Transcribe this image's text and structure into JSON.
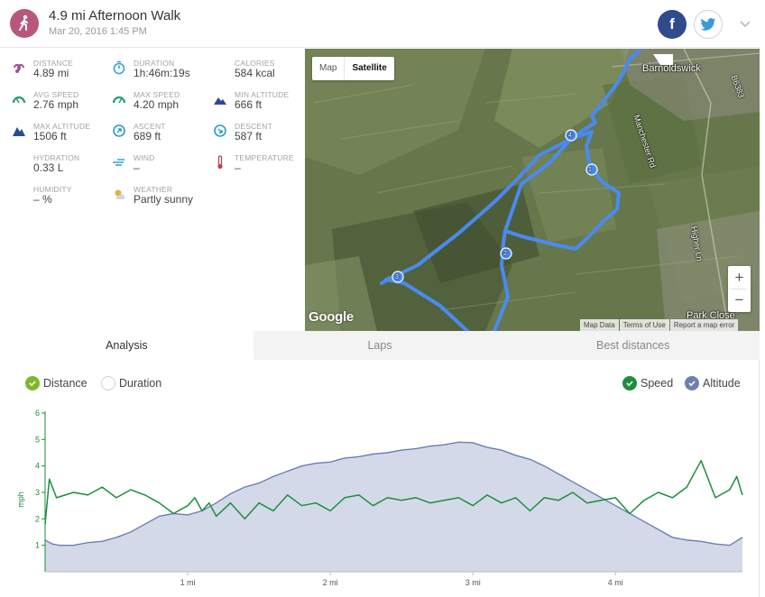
{
  "header": {
    "title": "4.9 mi Afternoon Walk",
    "date": "Mar 20, 2016 1:45 PM",
    "activity_icon": "walking-person-icon",
    "facebook_label": "f"
  },
  "stats": [
    {
      "key": "distance",
      "label": "DISTANCE",
      "value": "4.89 mi",
      "icon": "distance-icon",
      "color": "#9b4f96"
    },
    {
      "key": "duration",
      "label": "DURATION",
      "value": "1h:46m:19s",
      "icon": "stopwatch-icon",
      "color": "#3b9fd8"
    },
    {
      "key": "calories",
      "label": "CALORIES",
      "value": "584 kcal",
      "icon": "flame-icon",
      "color": "#e8632b"
    },
    {
      "key": "avg_speed",
      "label": "AVG SPEED",
      "value": "2.76 mph",
      "icon": "speedometer-icon",
      "color": "#2a9d6e"
    },
    {
      "key": "max_speed",
      "label": "MAX SPEED",
      "value": "4.20 mph",
      "icon": "speedometer-max-icon",
      "color": "#2a9d6e"
    },
    {
      "key": "min_altitude",
      "label": "MIN ALTITUDE",
      "value": "666 ft",
      "icon": "mountain-low-icon",
      "color": "#2d4a8f"
    },
    {
      "key": "max_altitude",
      "label": "MAX ALTITUDE",
      "value": "1506 ft",
      "icon": "mountain-high-icon",
      "color": "#2d4a8f"
    },
    {
      "key": "ascent",
      "label": "ASCENT",
      "value": "689 ft",
      "icon": "compass-up-icon",
      "color": "#2a9bc4"
    },
    {
      "key": "descent",
      "label": "DESCENT",
      "value": "587 ft",
      "icon": "compass-down-icon",
      "color": "#2a9bc4"
    },
    {
      "key": "hydration",
      "label": "HYDRATION",
      "value": "0.33 L",
      "icon": "water-drops-icon",
      "color": "#5fa5e3"
    },
    {
      "key": "wind",
      "label": "WIND",
      "value": "–",
      "icon": "wind-icon",
      "color": "#2aa9c4"
    },
    {
      "key": "temperature",
      "label": "TEMPERATURE",
      "value": "–",
      "icon": "thermometer-icon",
      "color": "#b04a5a"
    },
    {
      "key": "humidity",
      "label": "HUMIDITY",
      "value": "– %",
      "icon": "humidity-drops-icon",
      "color": "#5fa5e3"
    },
    {
      "key": "weather",
      "label": "WEATHER",
      "value": "Partly sunny",
      "icon": "partly-sunny-icon",
      "color": "#d9b44a"
    }
  ],
  "map": {
    "map_button": "Map",
    "satellite_button": "Satellite",
    "zoom_in": "+",
    "zoom_out": "−",
    "logo": "Google",
    "footer": [
      "Map Data",
      "Terms of Use",
      "Report a map error"
    ],
    "town_label": "Barnoldswick",
    "park_label": "Park Close",
    "road_labels": [
      "Manchester Rd",
      "Higher Ln",
      "B6383"
    ],
    "waypoints": [
      "1",
      "2",
      "3",
      "4"
    ],
    "route_color": "#4a8af0"
  },
  "tabs": [
    {
      "label": "Analysis",
      "active": true
    },
    {
      "label": "Laps",
      "active": false
    },
    {
      "label": "Best distances",
      "active": false
    }
  ],
  "chart_options": {
    "distance": "Distance",
    "duration": "Duration",
    "speed": "Speed",
    "altitude": "Altitude"
  },
  "chart_data": {
    "type": "line",
    "ylabel": "mph",
    "ylim": [
      0,
      6
    ],
    "yticks": [
      "1",
      "2",
      "3",
      "4",
      "5",
      "6"
    ],
    "xlim": [
      0,
      4.89
    ],
    "xticks": [
      {
        "v": 1,
        "label": "1 mi"
      },
      {
        "v": 2,
        "label": "2 mi"
      },
      {
        "v": 3,
        "label": "3 mi"
      },
      {
        "v": 4,
        "label": "4 mi"
      }
    ],
    "colors": {
      "speed": "#1a8f3c",
      "altitude_fill": "#d4d9ea",
      "altitude_line": "#6b7fb4",
      "axis": "#1a8f3c"
    },
    "series": [
      {
        "name": "Speed",
        "x": [
          0.0,
          0.03,
          0.08,
          0.2,
          0.3,
          0.4,
          0.5,
          0.6,
          0.7,
          0.8,
          0.9,
          1.0,
          1.05,
          1.1,
          1.15,
          1.2,
          1.3,
          1.4,
          1.5,
          1.6,
          1.7,
          1.8,
          1.9,
          2.0,
          2.1,
          2.2,
          2.3,
          2.4,
          2.5,
          2.6,
          2.7,
          2.8,
          2.9,
          3.0,
          3.1,
          3.2,
          3.3,
          3.4,
          3.5,
          3.6,
          3.7,
          3.8,
          3.9,
          4.0,
          4.1,
          4.2,
          4.3,
          4.4,
          4.5,
          4.6,
          4.7,
          4.8,
          4.85,
          4.89
        ],
        "values": [
          1.8,
          3.5,
          2.8,
          3.0,
          2.9,
          3.2,
          2.8,
          3.1,
          2.9,
          2.6,
          2.2,
          2.5,
          2.8,
          2.3,
          2.6,
          2.1,
          2.6,
          2.0,
          2.6,
          2.3,
          2.9,
          2.5,
          2.6,
          2.3,
          2.8,
          2.9,
          2.5,
          2.8,
          2.7,
          2.8,
          2.6,
          2.7,
          2.8,
          2.5,
          2.9,
          2.6,
          2.8,
          2.3,
          2.8,
          2.7,
          3.0,
          2.6,
          2.7,
          2.8,
          2.2,
          2.7,
          3.0,
          2.8,
          3.2,
          4.2,
          2.8,
          3.1,
          3.6,
          2.9
        ]
      },
      {
        "name": "Altitude",
        "x": [
          0.0,
          0.05,
          0.1,
          0.2,
          0.3,
          0.4,
          0.5,
          0.6,
          0.7,
          0.8,
          0.9,
          1.0,
          1.1,
          1.2,
          1.3,
          1.4,
          1.5,
          1.6,
          1.7,
          1.8,
          1.9,
          2.0,
          2.1,
          2.2,
          2.3,
          2.4,
          2.5,
          2.6,
          2.7,
          2.8,
          2.9,
          3.0,
          3.1,
          3.2,
          3.3,
          3.4,
          3.5,
          3.6,
          3.7,
          3.8,
          3.9,
          4.0,
          4.1,
          4.2,
          4.3,
          4.4,
          4.5,
          4.6,
          4.7,
          4.8,
          4.89
        ],
        "values": [
          1.2,
          1.05,
          1.0,
          1.0,
          1.1,
          1.15,
          1.3,
          1.5,
          1.8,
          2.1,
          2.2,
          2.15,
          2.3,
          2.6,
          2.95,
          3.2,
          3.35,
          3.6,
          3.8,
          4.0,
          4.1,
          4.15,
          4.3,
          4.35,
          4.45,
          4.5,
          4.6,
          4.65,
          4.75,
          4.8,
          4.9,
          4.88,
          4.7,
          4.6,
          4.4,
          4.25,
          4.0,
          3.7,
          3.4,
          3.1,
          2.8,
          2.5,
          2.2,
          1.9,
          1.6,
          1.3,
          1.2,
          1.15,
          1.05,
          1.0,
          1.3
        ]
      }
    ]
  }
}
